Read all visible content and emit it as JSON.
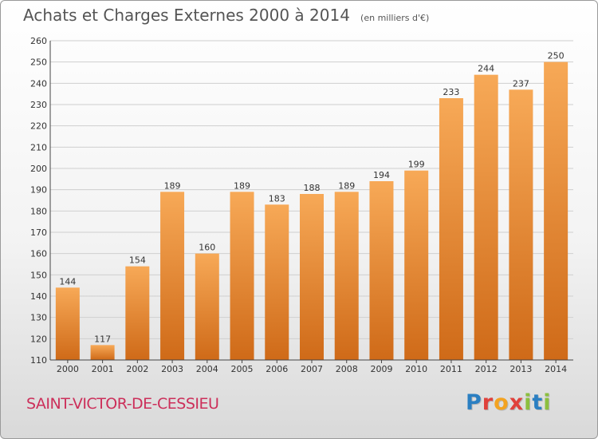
{
  "header": {
    "title": "Achats et Charges Externes 2000 à 2014",
    "subtitle": "(en milliers d'€)"
  },
  "footer": {
    "commune": "SAINT-VICTOR-DE-CESSIEU",
    "logo": "Proxiti",
    "logo_colors": [
      "#2b7fc2",
      "#e0413b",
      "#f3a321",
      "#e0413b",
      "#8cbf3f",
      "#2b7fc2",
      "#8cbf3f"
    ]
  },
  "colors": {
    "bar_light": "#f7a957",
    "bar_dark": "#cf6a18",
    "grid": "#cfcfcf",
    "axis": "#444444",
    "label": "#333333"
  },
  "chart_data": {
    "type": "bar",
    "categories": [
      "2000",
      "2001",
      "2002",
      "2003",
      "2004",
      "2005",
      "2006",
      "2007",
      "2008",
      "2009",
      "2010",
      "2011",
      "2012",
      "2013",
      "2014"
    ],
    "values": [
      144,
      117,
      154,
      189,
      160,
      189,
      183,
      188,
      189,
      194,
      199,
      233,
      244,
      237,
      250
    ],
    "ylim": [
      110,
      260
    ],
    "yticks": [
      110,
      120,
      130,
      140,
      150,
      160,
      170,
      180,
      190,
      200,
      210,
      220,
      230,
      240,
      250,
      260
    ],
    "grid": true,
    "xlabel": "",
    "ylabel": ""
  }
}
